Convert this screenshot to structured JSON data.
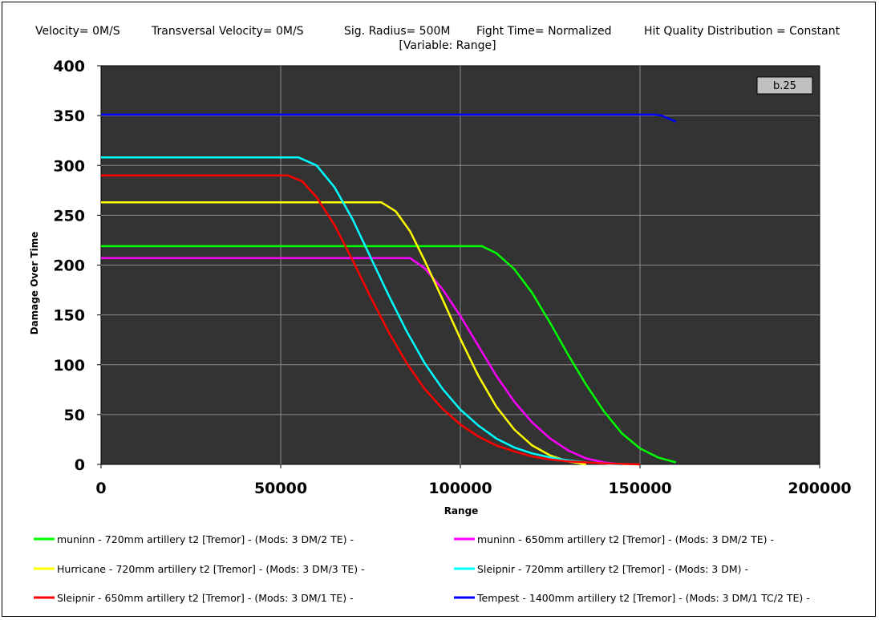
{
  "header": {
    "velocity": "Velocity= 0M/S",
    "transversal": "Transversal Velocity= 0M/S",
    "sig_radius": "Sig. Radius= 500M",
    "fight_time": "Fight Time= Normalized",
    "hit_quality": "Hit Quality Distribution = Constant",
    "variable": "[Variable: Range]"
  },
  "badge": "b.25",
  "chart_data": {
    "type": "line",
    "title": "",
    "xlabel": "Range",
    "ylabel": "Damage Over Time",
    "xlim": [
      0,
      200000
    ],
    "ylim": [
      0,
      400
    ],
    "x_ticks": [
      0,
      50000,
      100000,
      150000,
      200000
    ],
    "y_ticks": [
      0,
      50,
      100,
      150,
      200,
      250,
      300,
      350,
      400
    ],
    "grid": true,
    "plot_background": "#333333",
    "legend_position": "bottom",
    "series": [
      {
        "name": "muninn - 720mm artillery t2 [Tremor] - (Mods: 3 DM/2 TE) -",
        "color": "#00ff00",
        "points": [
          [
            0,
            219
          ],
          [
            106000,
            219
          ],
          [
            110000,
            212
          ],
          [
            115000,
            196
          ],
          [
            120000,
            172
          ],
          [
            125000,
            142
          ],
          [
            130000,
            110
          ],
          [
            135000,
            80
          ],
          [
            140000,
            53
          ],
          [
            145000,
            31
          ],
          [
            150000,
            16
          ],
          [
            155000,
            7
          ],
          [
            160000,
            2
          ]
        ]
      },
      {
        "name": "muninn - 650mm artillery t2 [Tremor] - (Mods: 3 DM/2 TE) -",
        "color": "#ff00ff",
        "points": [
          [
            0,
            207
          ],
          [
            86000,
            207
          ],
          [
            90000,
            197
          ],
          [
            95000,
            176
          ],
          [
            100000,
            149
          ],
          [
            105000,
            119
          ],
          [
            110000,
            89
          ],
          [
            115000,
            63
          ],
          [
            120000,
            42
          ],
          [
            125000,
            26
          ],
          [
            130000,
            14
          ],
          [
            135000,
            6
          ],
          [
            140000,
            2
          ],
          [
            145000,
            0
          ]
        ]
      },
      {
        "name": "Hurricane - 720mm artillery t2 [Tremor] - (Mods: 3 DM/3 TE) -",
        "color": "#ffff00",
        "points": [
          [
            0,
            263
          ],
          [
            78000,
            263
          ],
          [
            82000,
            254
          ],
          [
            86000,
            234
          ],
          [
            90000,
            205
          ],
          [
            95000,
            166
          ],
          [
            100000,
            126
          ],
          [
            105000,
            89
          ],
          [
            110000,
            58
          ],
          [
            115000,
            35
          ],
          [
            120000,
            19
          ],
          [
            125000,
            9
          ],
          [
            130000,
            3
          ],
          [
            135000,
            0
          ]
        ]
      },
      {
        "name": "Sleipnir - 720mm artillery t2 [Tremor] - (Mods: 3 DM) -",
        "color": "#00ffff",
        "points": [
          [
            0,
            308
          ],
          [
            55000,
            308
          ],
          [
            60000,
            300
          ],
          [
            65000,
            278
          ],
          [
            70000,
            246
          ],
          [
            75000,
            208
          ],
          [
            80000,
            170
          ],
          [
            85000,
            134
          ],
          [
            90000,
            102
          ],
          [
            95000,
            76
          ],
          [
            100000,
            55
          ],
          [
            105000,
            39
          ],
          [
            110000,
            26
          ],
          [
            115000,
            17
          ],
          [
            120000,
            11
          ],
          [
            125000,
            7
          ],
          [
            130000,
            4
          ],
          [
            135000,
            2
          ],
          [
            140000,
            1
          ],
          [
            145000,
            0
          ]
        ]
      },
      {
        "name": "Sleipnir - 650mm artillery t2 [Tremor] - (Mods: 3 DM/1 TE) -",
        "color": "#ff0000",
        "points": [
          [
            0,
            290
          ],
          [
            52000,
            290
          ],
          [
            56000,
            284
          ],
          [
            60000,
            268
          ],
          [
            65000,
            240
          ],
          [
            70000,
            205
          ],
          [
            75000,
            168
          ],
          [
            80000,
            133
          ],
          [
            85000,
            102
          ],
          [
            90000,
            76
          ],
          [
            95000,
            56
          ],
          [
            100000,
            40
          ],
          [
            105000,
            28
          ],
          [
            110000,
            19
          ],
          [
            115000,
            13
          ],
          [
            120000,
            8
          ],
          [
            125000,
            5
          ],
          [
            130000,
            3
          ],
          [
            140000,
            1
          ],
          [
            150000,
            0
          ]
        ]
      },
      {
        "name": "Tempest - 1400mm artillery t2 [Tremor] - (Mods: 3 DM/1 TC/2 TE) -",
        "color": "#0000ff",
        "points": [
          [
            0,
            351
          ],
          [
            154000,
            351
          ],
          [
            156000,
            350
          ],
          [
            158000,
            347
          ],
          [
            160000,
            344
          ]
        ]
      }
    ]
  }
}
